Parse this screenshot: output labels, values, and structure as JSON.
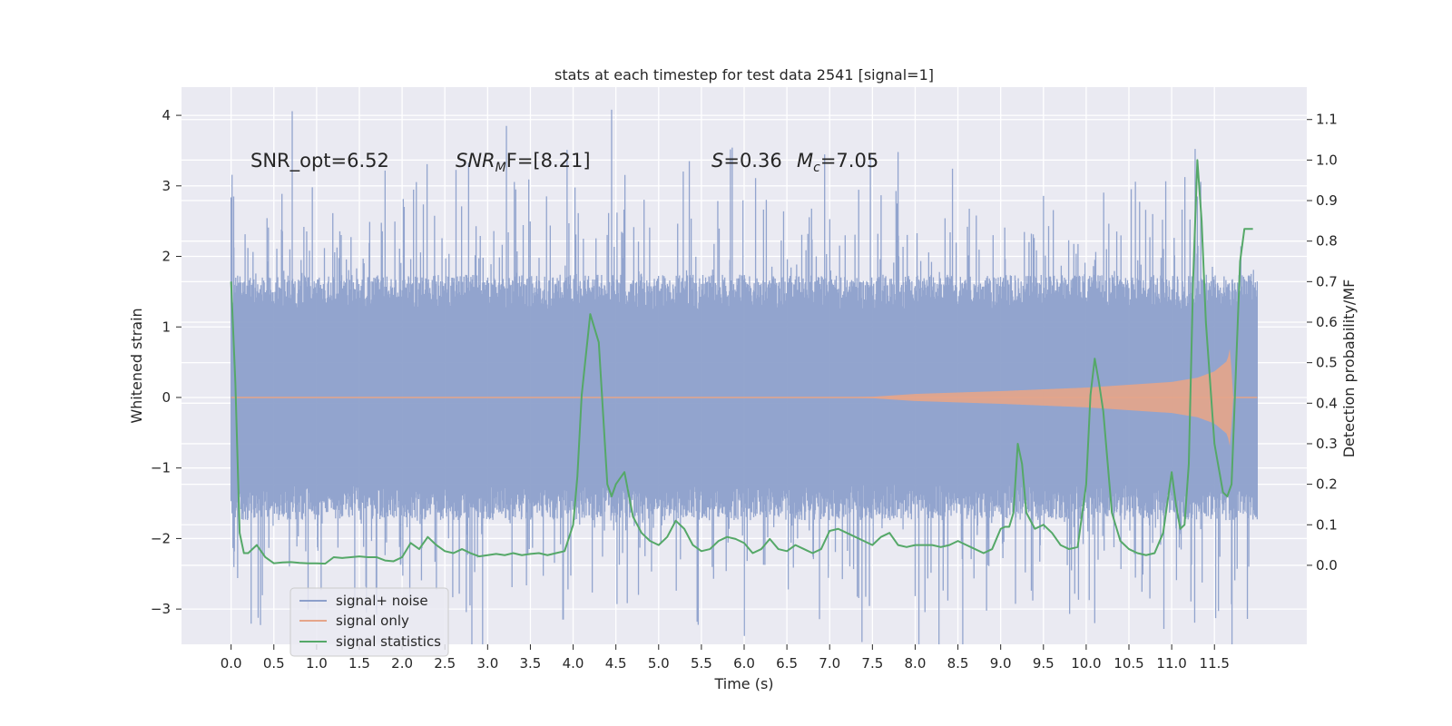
{
  "chart_data": {
    "type": "line",
    "title": "stats at each timestep for test data 2541 [signal=1]",
    "xlabel": "Time (s)",
    "ylabel": "Whitened strain",
    "ylabel_right": "Detection probability/MF",
    "xlim": [
      -0.58,
      12.58
    ],
    "ylim": [
      -3.5,
      4.4
    ],
    "ylim_right": [
      -0.195,
      1.18
    ],
    "x_ticks": [
      "0.0",
      "0.5",
      "1.0",
      "1.5",
      "2.0",
      "2.5",
      "3.0",
      "3.5",
      "4.0",
      "4.5",
      "5.0",
      "5.5",
      "6.0",
      "6.5",
      "7.0",
      "7.5",
      "8.0",
      "8.5",
      "9.0",
      "9.5",
      "10.0",
      "10.5",
      "11.0",
      "11.5"
    ],
    "x_tick_values": [
      0.0,
      0.5,
      1.0,
      1.5,
      2.0,
      2.5,
      3.0,
      3.5,
      4.0,
      4.5,
      5.0,
      5.5,
      6.0,
      6.5,
      7.0,
      7.5,
      8.0,
      8.5,
      9.0,
      9.5,
      10.0,
      10.5,
      11.0,
      11.5
    ],
    "y_ticks": [
      "−3",
      "−2",
      "−1",
      "0",
      "1",
      "2",
      "3",
      "4"
    ],
    "y_tick_values": [
      -3,
      -2,
      -1,
      0,
      1,
      2,
      3,
      4
    ],
    "y_right_ticks": [
      "0.0",
      "0.1",
      "0.2",
      "0.3",
      "0.4",
      "0.5",
      "0.6",
      "0.7",
      "0.8",
      "0.9",
      "1.0",
      "1.1"
    ],
    "y_right_tick_values": [
      0.0,
      0.1,
      0.2,
      0.3,
      0.4,
      0.5,
      0.6,
      0.7,
      0.8,
      0.9,
      1.0,
      1.1
    ],
    "annotations": {
      "snr_opt": "SNR_opt=6.52",
      "snr_mf_italic": "SNR",
      "snr_mf_sub": "M",
      "snr_mf_rest": "F=[8.21]",
      "s_italic": "S",
      "s_rest": "=0.36",
      "mc_italic": "M",
      "mc_sub": "c",
      "mc_rest": "=7.05"
    },
    "legend": {
      "placement": "lower-left",
      "entries": [
        "signal+ noise",
        "signal only",
        "signal statistics"
      ]
    },
    "series": [
      {
        "name": "signal+ noise",
        "color": "#8da0cb",
        "x_range": [
          0.0,
          12.0
        ],
        "typical_amplitude": 1.45,
        "notable_peaks": [
          [
            0.03,
            2.85
          ],
          [
            0.95,
            2.98
          ],
          [
            3.22,
            3.85
          ],
          [
            4.45,
            4.08
          ],
          [
            7.8,
            3.48
          ],
          [
            11.3,
            2.85
          ],
          [
            3.88,
            -3.15
          ],
          [
            5.45,
            -3.18
          ],
          [
            10.1,
            -3.2
          ],
          [
            11.7,
            -2.93
          ]
        ]
      },
      {
        "name": "signal only",
        "color": "#e5a58a",
        "x_range": [
          0.0,
          12.0
        ],
        "envelope": [
          [
            0.0,
            0.0
          ],
          [
            7.0,
            0.0
          ],
          [
            7.5,
            0.01
          ],
          [
            8.0,
            0.05
          ],
          [
            9.0,
            0.09
          ],
          [
            10.0,
            0.14
          ],
          [
            10.5,
            0.18
          ],
          [
            11.0,
            0.22
          ],
          [
            11.3,
            0.28
          ],
          [
            11.5,
            0.37
          ],
          [
            11.65,
            0.52
          ],
          [
            11.69,
            0.75
          ],
          [
            11.71,
            0.0
          ],
          [
            12.0,
            0.0
          ]
        ]
      },
      {
        "name": "signal statistics",
        "color": "#55a868",
        "x": [
          0.0,
          0.05,
          0.1,
          0.15,
          0.2,
          0.3,
          0.4,
          0.5,
          0.6,
          0.7,
          0.8,
          0.9,
          1.0,
          1.1,
          1.2,
          1.3,
          1.4,
          1.5,
          1.6,
          1.7,
          1.8,
          1.9,
          2.0,
          2.1,
          2.2,
          2.3,
          2.4,
          2.5,
          2.6,
          2.7,
          2.8,
          2.9,
          3.0,
          3.1,
          3.2,
          3.3,
          3.4,
          3.5,
          3.6,
          3.7,
          3.8,
          3.9,
          4.0,
          4.05,
          4.1,
          4.2,
          4.3,
          4.4,
          4.45,
          4.5,
          4.6,
          4.7,
          4.8,
          4.9,
          5.0,
          5.1,
          5.2,
          5.3,
          5.4,
          5.5,
          5.6,
          5.7,
          5.8,
          5.9,
          6.0,
          6.1,
          6.2,
          6.3,
          6.4,
          6.5,
          6.6,
          6.7,
          6.8,
          6.9,
          7.0,
          7.1,
          7.2,
          7.3,
          7.4,
          7.5,
          7.6,
          7.7,
          7.8,
          7.9,
          8.0,
          8.1,
          8.2,
          8.3,
          8.4,
          8.5,
          8.6,
          8.7,
          8.8,
          8.9,
          9.0,
          9.05,
          9.1,
          9.15,
          9.2,
          9.25,
          9.3,
          9.4,
          9.5,
          9.6,
          9.7,
          9.8,
          9.9,
          10.0,
          10.05,
          10.1,
          10.15,
          10.2,
          10.3,
          10.4,
          10.5,
          10.6,
          10.7,
          10.8,
          10.9,
          11.0,
          11.05,
          11.1,
          11.15,
          11.2,
          11.25,
          11.3,
          11.35,
          11.4,
          11.5,
          11.6,
          11.65,
          11.7,
          11.8,
          11.85,
          11.9,
          11.95
        ],
        "values": [
          0.7,
          0.45,
          0.08,
          0.03,
          0.03,
          0.05,
          0.02,
          0.005,
          0.007,
          0.008,
          0.006,
          0.005,
          0.005,
          0.004,
          0.02,
          0.018,
          0.02,
          0.022,
          0.02,
          0.02,
          0.012,
          0.01,
          0.02,
          0.055,
          0.04,
          0.07,
          0.05,
          0.035,
          0.03,
          0.04,
          0.03,
          0.022,
          0.025,
          0.028,
          0.025,
          0.03,
          0.025,
          0.028,
          0.03,
          0.025,
          0.03,
          0.035,
          0.1,
          0.22,
          0.42,
          0.62,
          0.55,
          0.2,
          0.17,
          0.2,
          0.23,
          0.12,
          0.08,
          0.06,
          0.05,
          0.07,
          0.11,
          0.09,
          0.05,
          0.035,
          0.04,
          0.06,
          0.07,
          0.065,
          0.055,
          0.03,
          0.04,
          0.065,
          0.04,
          0.035,
          0.05,
          0.04,
          0.03,
          0.04,
          0.085,
          0.09,
          0.08,
          0.07,
          0.06,
          0.05,
          0.07,
          0.08,
          0.05,
          0.045,
          0.05,
          0.05,
          0.05,
          0.045,
          0.05,
          0.06,
          0.05,
          0.04,
          0.03,
          0.04,
          0.09,
          0.095,
          0.095,
          0.13,
          0.3,
          0.25,
          0.13,
          0.09,
          0.1,
          0.08,
          0.05,
          0.04,
          0.045,
          0.2,
          0.42,
          0.51,
          0.45,
          0.38,
          0.13,
          0.06,
          0.04,
          0.03,
          0.025,
          0.03,
          0.08,
          0.23,
          0.15,
          0.09,
          0.1,
          0.25,
          0.7,
          1.0,
          0.85,
          0.6,
          0.3,
          0.18,
          0.17,
          0.2,
          0.75,
          0.83,
          0.83,
          0.83
        ]
      }
    ]
  }
}
